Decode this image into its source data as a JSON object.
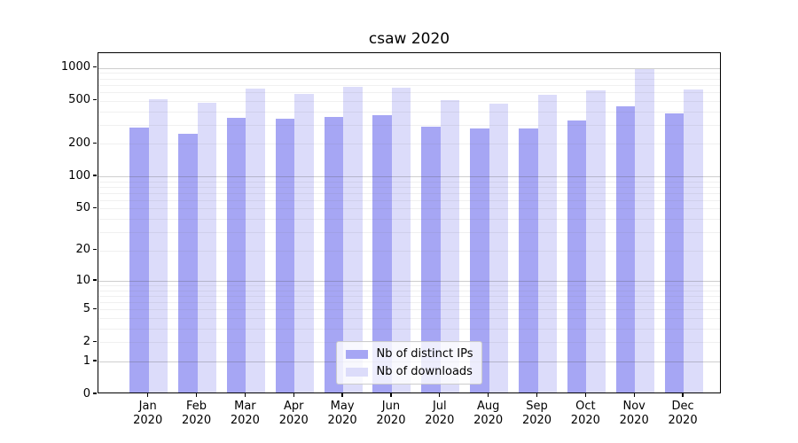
{
  "title": "csaw 2020",
  "colors": {
    "bar_dark": "#a6a6f4",
    "bar_light": "#dcdcfa",
    "axis": "#000000",
    "grid_major": "#c8c8c8",
    "grid_minor": "#ebebeb",
    "legend_border": "#cccccc",
    "legend_bg": "rgba(255,255,255,0.8)"
  },
  "chart_data": {
    "type": "bar",
    "title": "csaw 2020",
    "xlabel": "",
    "ylabel": "",
    "yscale": "symlog",
    "grid": true,
    "legend_position": "lower center",
    "ylim": [
      0,
      1370
    ],
    "yticks": [
      0,
      1,
      2,
      5,
      10,
      20,
      50,
      100,
      200,
      500,
      1000
    ],
    "categories": [
      "Jan 2020",
      "Feb 2020",
      "Mar 2020",
      "Apr 2020",
      "May 2020",
      "Jun 2020",
      "Jul 2020",
      "Aug 2020",
      "Sep 2020",
      "Oct 2020",
      "Nov 2020",
      "Dec 2020"
    ],
    "series": [
      {
        "name": "Nb of distinct IPs",
        "color": "#a6a6f4",
        "values": [
          272,
          240,
          335,
          330,
          344,
          357,
          278,
          266,
          268,
          317,
          430,
          368
        ]
      },
      {
        "name": "Nb of downloads",
        "color": "#dcdcfa",
        "values": [
          497,
          460,
          622,
          558,
          646,
          634,
          490,
          450,
          548,
          596,
          950,
          608
        ]
      }
    ]
  }
}
